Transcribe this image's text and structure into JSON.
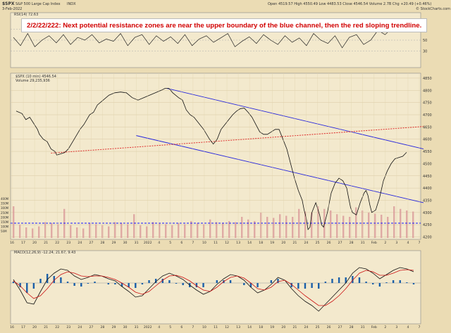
{
  "header": {
    "ticker": "$SPX",
    "name": "S&P 500 Large Cap Index",
    "exchange": "INDX",
    "date": "3-Feb-2022",
    "ohlc": "Open 4519.57  High 4550.49  Low 4483.53  Close 4546.54  Volume 2.7B  Chg +20.49 (+0.46%)",
    "credit": "© StockCharts.com"
  },
  "annotation": "2/2/22/222:  Next potential resistance zones are near the upper boundary of the blue channel, then the red sloping trendline.",
  "rsi_label": "RSI(14) 72.63",
  "price_label": "$SPX (10 min) 4546.54",
  "volume_label": "Volume 29,235,936",
  "macd_label": "MACD(12,26,9) -12.24, 21.67, 9.43",
  "chart_data": {
    "type": "line",
    "title": "S&P 500 Large Cap Index",
    "ylim": [
      4190,
      4870
    ],
    "price_ticks": [
      "4850",
      "4800",
      "4750",
      "4700",
      "4650",
      "4600",
      "4550",
      "4500",
      "4450",
      "4400",
      "4350",
      "4300",
      "4250",
      "4200"
    ],
    "volume_ticks": [
      "400M",
      "350M",
      "300M",
      "250M",
      "200M",
      "150M",
      "100M",
      "50M"
    ],
    "rsi_ticks": [
      "70",
      "50",
      "30"
    ],
    "date_ticks": [
      "16",
      "17",
      "20",
      "21",
      "22",
      "23",
      "24",
      "27",
      "28",
      "29",
      "30",
      "31",
      "2022",
      "4",
      "5",
      "6",
      "7",
      "10",
      "11",
      "12",
      "13",
      "14",
      "18",
      "19",
      "20",
      "21",
      "24",
      "25",
      "26",
      "27",
      "28",
      "31",
      "Feb",
      "2",
      "3",
      "4",
      "7"
    ],
    "price_series": [
      [
        0,
        4715
      ],
      [
        3,
        4705
      ],
      [
        5,
        4680
      ],
      [
        7,
        4690
      ],
      [
        9,
        4665
      ],
      [
        11,
        4640
      ],
      [
        12,
        4620
      ],
      [
        14,
        4600
      ],
      [
        16,
        4590
      ],
      [
        18,
        4560
      ],
      [
        20,
        4550
      ],
      [
        21,
        4535
      ],
      [
        23,
        4540
      ],
      [
        25,
        4545
      ],
      [
        27,
        4560
      ],
      [
        30,
        4600
      ],
      [
        33,
        4640
      ],
      [
        35,
        4660
      ],
      [
        38,
        4700
      ],
      [
        40,
        4710
      ],
      [
        42,
        4740
      ],
      [
        45,
        4760
      ],
      [
        48,
        4780
      ],
      [
        51,
        4790
      ],
      [
        54,
        4793
      ],
      [
        57,
        4790
      ],
      [
        60,
        4770
      ],
      [
        63,
        4760
      ],
      [
        66,
        4770
      ],
      [
        69,
        4780
      ],
      [
        72,
        4790
      ],
      [
        75,
        4800
      ],
      [
        77,
        4808
      ],
      [
        79,
        4808
      ],
      [
        81,
        4790
      ],
      [
        84,
        4770
      ],
      [
        86,
        4760
      ],
      [
        88,
        4720
      ],
      [
        90,
        4700
      ],
      [
        92,
        4690
      ],
      [
        95,
        4660
      ],
      [
        97,
        4640
      ],
      [
        100,
        4600
      ],
      [
        102,
        4580
      ],
      [
        104,
        4600
      ],
      [
        106,
        4640
      ],
      [
        108,
        4660
      ],
      [
        110,
        4680
      ],
      [
        112,
        4700
      ],
      [
        114,
        4715
      ],
      [
        116,
        4725
      ],
      [
        118,
        4727
      ],
      [
        120,
        4710
      ],
      [
        122,
        4690
      ],
      [
        124,
        4660
      ],
      [
        126,
        4630
      ],
      [
        128,
        4620
      ],
      [
        130,
        4620
      ],
      [
        132,
        4630
      ],
      [
        134,
        4640
      ],
      [
        136,
        4640
      ],
      [
        138,
        4600
      ],
      [
        140,
        4560
      ],
      [
        142,
        4500
      ],
      [
        144,
        4440
      ],
      [
        146,
        4390
      ],
      [
        148,
        4350
      ],
      [
        149,
        4310
      ],
      [
        150,
        4280
      ],
      [
        151,
        4230
      ],
      [
        152,
        4240
      ],
      [
        153,
        4300
      ],
      [
        155,
        4340
      ],
      [
        157,
        4290
      ],
      [
        158,
        4250
      ],
      [
        159,
        4240
      ],
      [
        161,
        4300
      ],
      [
        163,
        4380
      ],
      [
        165,
        4420
      ],
      [
        167,
        4440
      ],
      [
        169,
        4430
      ],
      [
        171,
        4400
      ],
      [
        172,
        4360
      ],
      [
        173,
        4320
      ],
      [
        174,
        4300
      ],
      [
        176,
        4290
      ],
      [
        178,
        4340
      ],
      [
        180,
        4380
      ],
      [
        181,
        4390
      ],
      [
        182,
        4370
      ],
      [
        183,
        4330
      ],
      [
        184,
        4300
      ],
      [
        186,
        4310
      ],
      [
        188,
        4360
      ],
      [
        190,
        4430
      ],
      [
        192,
        4470
      ],
      [
        194,
        4500
      ],
      [
        196,
        4520
      ],
      [
        198,
        4525
      ],
      [
        200,
        4530
      ],
      [
        202,
        4546
      ]
    ],
    "volume_series": [
      {
        "name": "Volume",
        "values": [
          60,
          25,
          20,
          18,
          22,
          30,
          28,
          26,
          55,
          24,
          20,
          18,
          28,
          26,
          24,
          22,
          30,
          28,
          26,
          45,
          24,
          22,
          30,
          28,
          26,
          24,
          28,
          26,
          32,
          28,
          26,
          35,
          30,
          28,
          32,
          30,
          40,
          35,
          32,
          48,
          40,
          38,
          45,
          42,
          40,
          55,
          50,
          48,
          60,
          55,
          52,
          45,
          42,
          40,
          58,
          52,
          48,
          46,
          44,
          40,
          60,
          55,
          52,
          50
        ]
      }
    ],
    "rsi_series": [
      55,
      40,
      62,
      38,
      50,
      58,
      45,
      60,
      42,
      55,
      50,
      60,
      45,
      52,
      48,
      62,
      40,
      55,
      60,
      42,
      58,
      48,
      56,
      44,
      60,
      40,
      52,
      58,
      46,
      54,
      62,
      38,
      48,
      56,
      44,
      60,
      50,
      42,
      58,
      46,
      54,
      40,
      62,
      50,
      44,
      58,
      36,
      55,
      60,
      42,
      50,
      68,
      60,
      72,
      66,
      70,
      73
    ],
    "macd_series": [
      {
        "name": "MACD",
        "values": [
          5,
          -10,
          -28,
          -30,
          -12,
          5,
          14,
          20,
          18,
          10,
          5,
          8,
          12,
          10,
          6,
          3,
          -5,
          -12,
          -20,
          -18,
          -8,
          2,
          10,
          14,
          10,
          5,
          -3,
          -10,
          -16,
          -12,
          -2,
          6,
          12,
          10,
          4,
          -6,
          -14,
          -10,
          -2,
          8,
          4,
          -8,
          -18,
          -26,
          -32,
          -40,
          -30,
          -20,
          -10,
          0,
          14,
          22,
          20,
          14,
          6,
          12,
          18,
          22,
          20,
          16
        ]
      },
      {
        "name": "Signal",
        "values": [
          3,
          -4,
          -14,
          -22,
          -18,
          -8,
          4,
          12,
          16,
          14,
          10,
          9,
          10,
          10,
          8,
          5,
          0,
          -6,
          -13,
          -16,
          -12,
          -4,
          4,
          10,
          11,
          8,
          3,
          -4,
          -10,
          -12,
          -6,
          2,
          8,
          10,
          7,
          0,
          -8,
          -10,
          -6,
          2,
          4,
          -2,
          -10,
          -18,
          -25,
          -32,
          -32,
          -26,
          -18,
          -8,
          4,
          14,
          18,
          16,
          11,
          11,
          14,
          18,
          19,
          18
        ]
      }
    ]
  }
}
